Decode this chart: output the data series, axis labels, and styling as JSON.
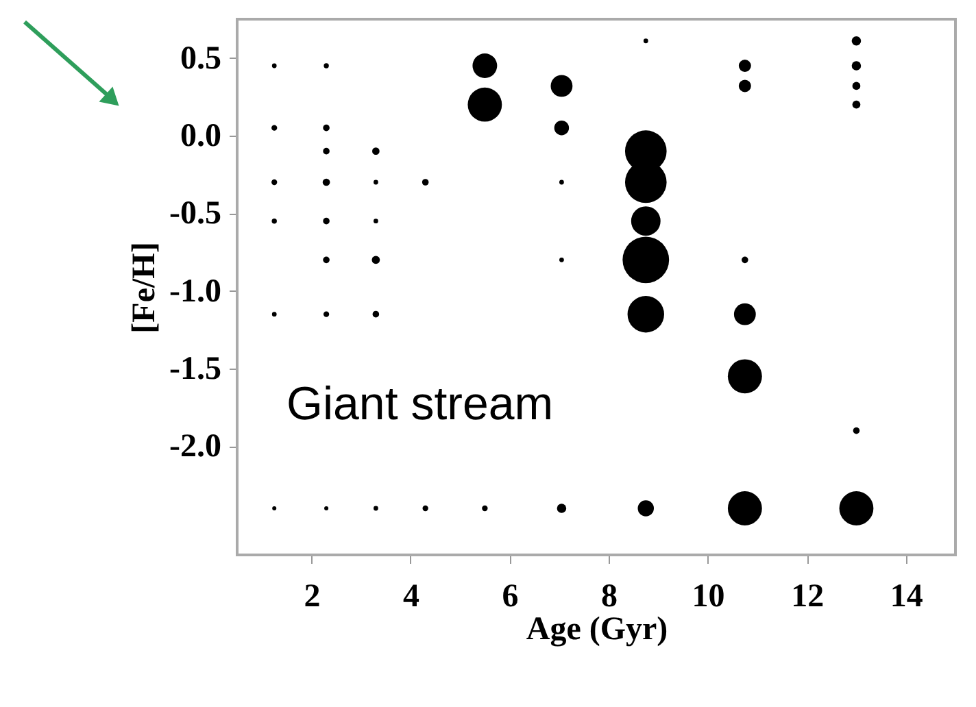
{
  "chart_data": {
    "type": "bubble",
    "xlabel": "Age (Gyr)",
    "ylabel": "[Fe/H]",
    "annotations": [
      "Giant stream"
    ],
    "xlim": [
      0.5,
      15
    ],
    "xticks": [
      2,
      4,
      6,
      8,
      10,
      12,
      14
    ],
    "ylim": [
      -2.7,
      0.75
    ],
    "yticks": [
      {
        "value": -2.0,
        "label": "-2.0"
      },
      {
        "value": -1.5,
        "label": "-1.5"
      },
      {
        "value": -1.0,
        "label": "-1.0"
      },
      {
        "value": -0.5,
        "label": "-0.5"
      },
      {
        "value": 0.0,
        "label": "0.0"
      },
      {
        "value": 0.5,
        "label": "0.5"
      }
    ],
    "grid": false,
    "series": [
      {
        "color": "#000000",
        "x": [
          1.25,
          1.25,
          1.25,
          1.25,
          1.25,
          1.25,
          2.3,
          2.3,
          2.3,
          2.3,
          2.3,
          2.3,
          2.3,
          2.3,
          3.3,
          3.3,
          3.3,
          3.3,
          3.3,
          3.3,
          4.3,
          4.3,
          5.5,
          5.5,
          5.5,
          7.05,
          7.05,
          7.05,
          7.05,
          7.05,
          8.75,
          8.75,
          8.75,
          8.75,
          8.75,
          8.75,
          8.75,
          10.75,
          10.75,
          10.75,
          10.75,
          10.75,
          10.75,
          13,
          13,
          13,
          13,
          13,
          13
        ],
        "values": [
          0.45,
          0.05,
          -0.3,
          -0.55,
          -1.15,
          -2.4,
          0.45,
          0.05,
          -0.1,
          -0.3,
          -0.55,
          -0.8,
          -1.15,
          -2.4,
          -0.1,
          -0.3,
          -0.55,
          -0.8,
          -1.15,
          -2.4,
          -0.3,
          -2.4,
          0.45,
          0.2,
          -2.4,
          0.32,
          0.05,
          -0.3,
          -0.8,
          -2.4,
          0.61,
          -0.1,
          -0.3,
          -0.55,
          -0.8,
          -1.15,
          -2.4,
          0.45,
          0.32,
          -0.8,
          -1.15,
          -1.55,
          -2.4,
          0.61,
          0.45,
          0.32,
          0.2,
          -1.9,
          -2.4
        ],
        "sizes": [
          0.01,
          0.015,
          0.015,
          0.012,
          0.01,
          0.008,
          0.012,
          0.02,
          0.02,
          0.025,
          0.02,
          0.02,
          0.015,
          0.008,
          0.025,
          0.01,
          0.01,
          0.03,
          0.02,
          0.01,
          0.02,
          0.015,
          0.28,
          0.54,
          0.015,
          0.22,
          0.1,
          0.01,
          0.01,
          0.04,
          0.01,
          0.8,
          0.8,
          0.4,
          1,
          0.62,
          0.12,
          0.07,
          0.07,
          0.02,
          0.22,
          0.54,
          0.54,
          0.04,
          0.04,
          0.03,
          0.03,
          0.02,
          0.54
        ]
      }
    ]
  }
}
